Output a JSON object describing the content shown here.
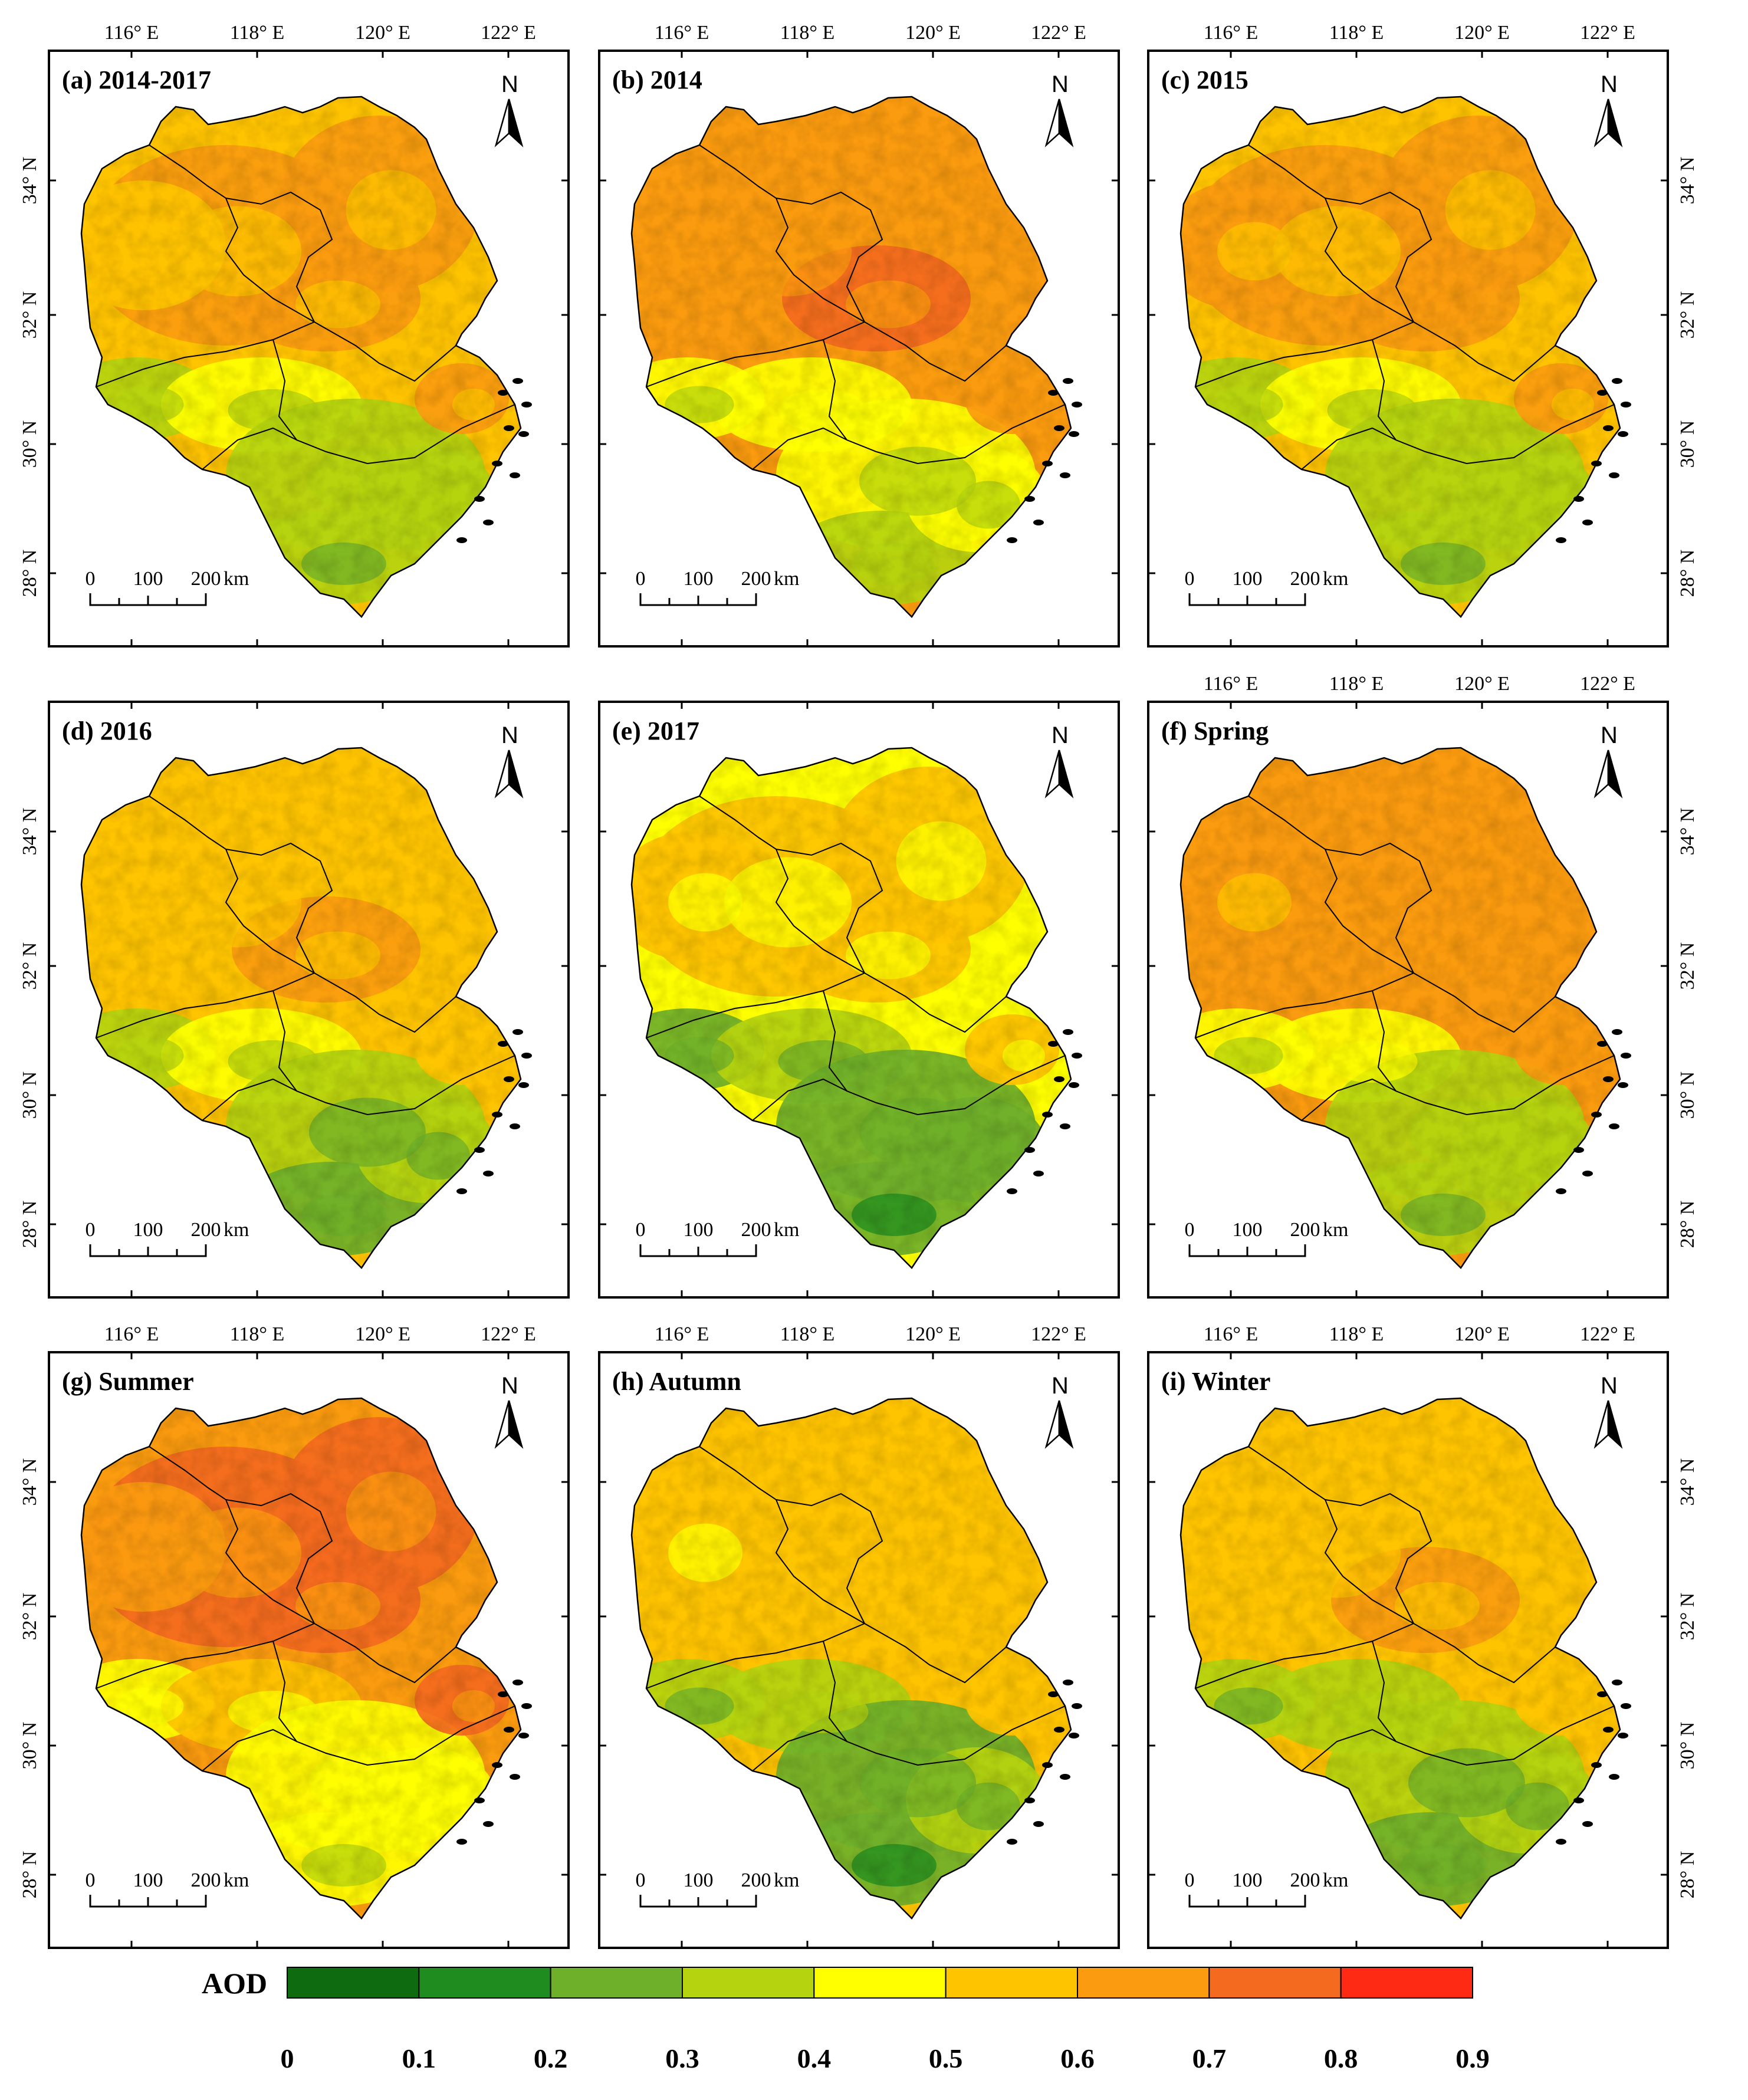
{
  "legend": {
    "title": "AOD",
    "classes": [
      {
        "from": 0.0,
        "to": 0.1,
        "color": "#0f6b0f"
      },
      {
        "from": 0.1,
        "to": 0.2,
        "color": "#1f8c1f"
      },
      {
        "from": 0.2,
        "to": 0.3,
        "color": "#6fb02a"
      },
      {
        "from": 0.3,
        "to": 0.4,
        "color": "#b5d40f"
      },
      {
        "from": 0.4,
        "to": 0.5,
        "color": "#ffff00"
      },
      {
        "from": 0.5,
        "to": 0.6,
        "color": "#ffc400"
      },
      {
        "from": 0.6,
        "to": 0.7,
        "color": "#fb9b0f"
      },
      {
        "from": 0.7,
        "to": 0.8,
        "color": "#f46a1e"
      },
      {
        "from": 0.8,
        "to": 0.9,
        "color": "#ff2a14"
      }
    ],
    "ticks": [
      "0",
      "0.1",
      "0.2",
      "0.3",
      "0.4",
      "0.5",
      "0.6",
      "0.7",
      "0.8",
      "0.9"
    ]
  },
  "axes": {
    "lon_labels": [
      "116° E",
      "118° E",
      "120° E",
      "122° E"
    ],
    "lat_labels": [
      "34° N",
      "32° N",
      "30° N",
      "28° N"
    ]
  },
  "north_arrow": {
    "letter": "N"
  },
  "scale_bar": {
    "labels": [
      "0",
      "100",
      "200"
    ],
    "unit": "km"
  },
  "panels": [
    {
      "id": "a",
      "title": "(a) 2014-2017",
      "mean_level": 0.56
    },
    {
      "id": "b",
      "title": "(b) 2014",
      "mean_level": 0.62
    },
    {
      "id": "c",
      "title": "(c) 2015",
      "mean_level": 0.58
    },
    {
      "id": "d",
      "title": "(d) 2016",
      "mean_level": 0.53
    },
    {
      "id": "e",
      "title": "(e) 2017",
      "mean_level": 0.47
    },
    {
      "id": "f",
      "title": "(f) Spring",
      "mean_level": 0.6
    },
    {
      "id": "g",
      "title": "(g) Summer",
      "mean_level": 0.66
    },
    {
      "id": "h",
      "title": "(h) Autumn",
      "mean_level": 0.5
    },
    {
      "id": "i",
      "title": "(i) Winter",
      "mean_level": 0.52
    }
  ]
}
